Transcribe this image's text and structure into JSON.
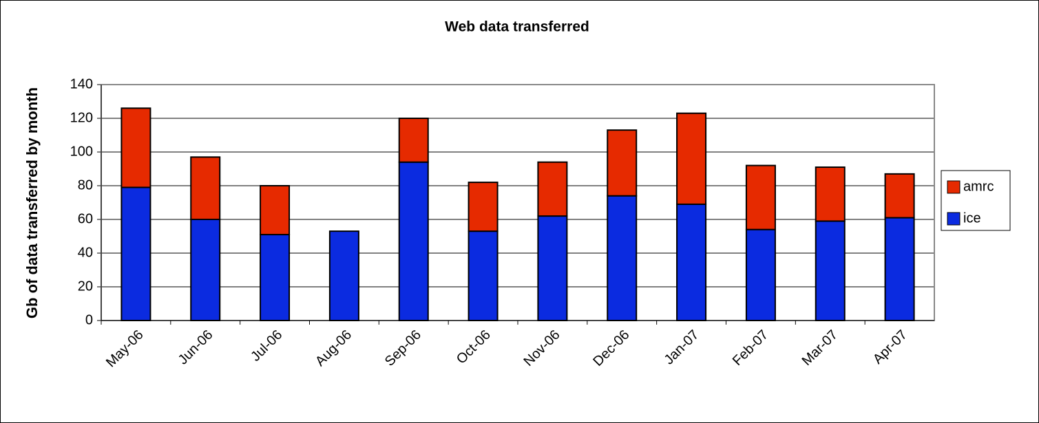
{
  "chart_data": {
    "type": "stacked_bar",
    "title": "Web data transferred",
    "y_label": "Gb of data transferred by month",
    "categories": [
      "May-06",
      "Jun-06",
      "Jul-06",
      "Aug-06",
      "Sep-06",
      "Oct-06",
      "Nov-06",
      "Dec-06",
      "Jan-07",
      "Feb-07",
      "Mar-07",
      "Apr-07"
    ],
    "series": [
      {
        "name": "ice",
        "color": "#0b2be0",
        "values": [
          79,
          60,
          51,
          53,
          94,
          53,
          62,
          74,
          69,
          54,
          59,
          61
        ]
      },
      {
        "name": "amrc",
        "color": "#e62a00",
        "values": [
          47,
          37,
          29,
          0,
          26,
          29,
          32,
          39,
          54,
          38,
          32,
          26
        ]
      }
    ],
    "ylim": [
      0,
      140
    ],
    "yticks": [
      0,
      20,
      40,
      60,
      80,
      100,
      120,
      140
    ],
    "grid": true,
    "legend": "right"
  }
}
